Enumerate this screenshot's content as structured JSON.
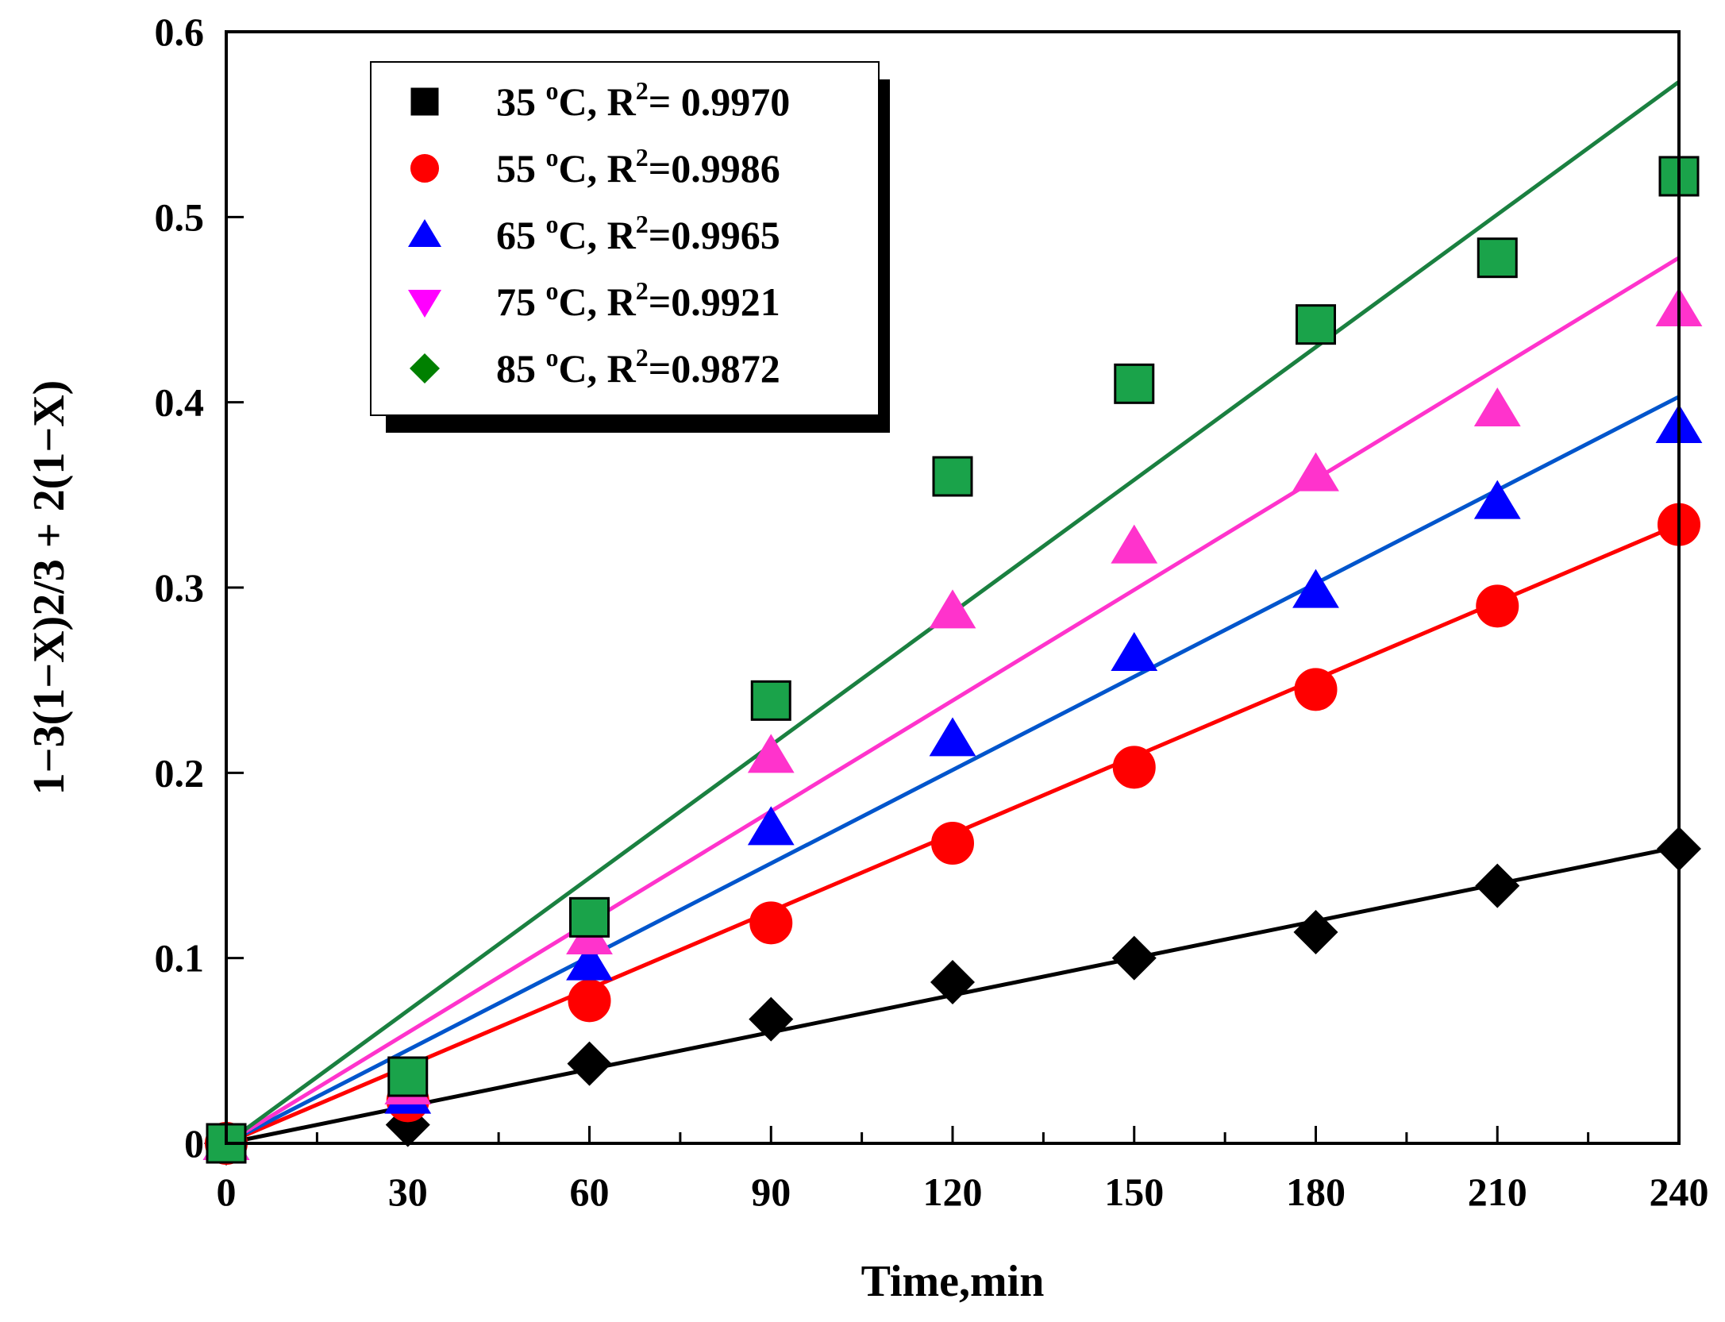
{
  "chart_data": {
    "type": "scatter",
    "title": "",
    "xlabel": "Time,min",
    "ylabel": "1−3(1−X)2/3 + 2(1−X)",
    "xlim": [
      0,
      240
    ],
    "ylim": [
      0,
      0.6
    ],
    "xticks": [
      0,
      30,
      60,
      90,
      120,
      150,
      180,
      210,
      240
    ],
    "xtick_labels": [
      "0",
      "30",
      "60",
      "90",
      "120",
      "150",
      "180",
      "210",
      "240"
    ],
    "yticks": [
      0,
      0.1,
      0.2,
      0.3,
      0.4,
      0.5,
      0.6
    ],
    "ytick_labels": [
      "0",
      "0.1",
      "0.2",
      "0.3",
      "0.4",
      "0.5",
      "0.6"
    ],
    "grid": false,
    "legend_position": "top-left",
    "x": [
      0,
      30,
      60,
      90,
      120,
      150,
      180,
      210,
      240
    ],
    "series": [
      {
        "name": "35 °C",
        "temp": "35",
        "r2_text": "= 0.9970",
        "legend_marker": "square",
        "legend_color": "#000000",
        "plot_marker": "diamond",
        "plot_color": "#000000",
        "line_color": "#000000",
        "values": [
          0,
          0.01,
          0.043,
          0.067,
          0.087,
          0.1,
          0.114,
          0.139,
          0.159
        ],
        "fit_end": 0.16
      },
      {
        "name": "55 °C",
        "temp": "55",
        "r2_text": "=0.9986",
        "legend_marker": "circle",
        "legend_color": "#ff0000",
        "plot_marker": "circle",
        "plot_color": "#ff0000",
        "line_color": "#ff0000",
        "values": [
          0,
          0.023,
          0.077,
          0.119,
          0.162,
          0.203,
          0.245,
          0.29,
          0.334
        ],
        "fit_end": 0.334
      },
      {
        "name": "65 °C",
        "temp": "65",
        "r2_text": "=0.9965",
        "legend_marker": "triangle-up",
        "legend_color": "#0000ff",
        "plot_marker": "triangle-up",
        "plot_color": "#0000ff",
        "line_color": "#0055cc",
        "values": [
          0,
          0.025,
          0.097,
          0.17,
          0.218,
          0.264,
          0.298,
          0.346,
          0.387
        ],
        "fit_end": 0.403
      },
      {
        "name": "75 °C",
        "temp": "75",
        "r2_text": "=0.9921",
        "legend_marker": "triangle-down",
        "legend_color": "#ff00ff",
        "plot_marker": "triangle-up",
        "plot_color": "#ff33cc",
        "line_color": "#ff33cc",
        "values": [
          0,
          0.03,
          0.111,
          0.209,
          0.287,
          0.322,
          0.361,
          0.396,
          0.45
        ],
        "fit_end": 0.478
      },
      {
        "name": "85 °C",
        "temp": "85",
        "r2_text": "=0.9872",
        "legend_marker": "diamond",
        "legend_color": "#008000",
        "plot_marker": "square",
        "plot_color": "#1aa34a",
        "line_color": "#1a8040",
        "values": [
          0,
          0.036,
          0.122,
          0.239,
          0.36,
          0.41,
          0.442,
          0.478,
          0.522
        ],
        "fit_end": 0.573
      }
    ]
  }
}
